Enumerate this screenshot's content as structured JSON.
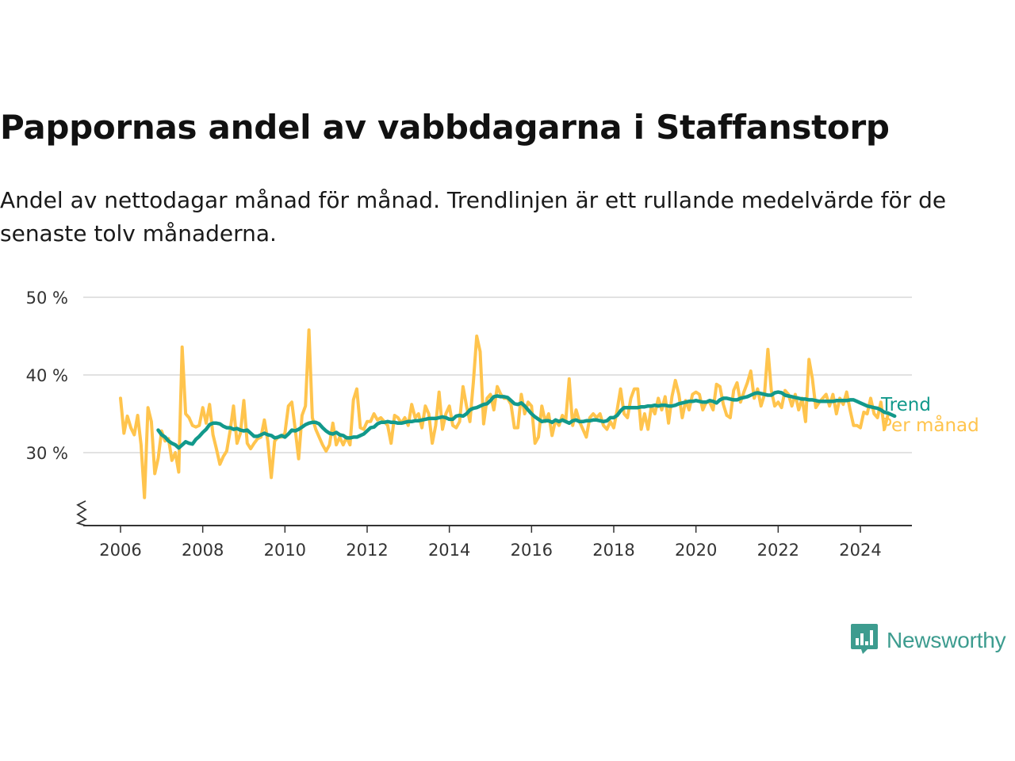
{
  "title": "Pappornas andel av vabbdagarna i Staffanstorp",
  "subtitle": "Andel av nettodagar månad för månad. Trendlinjen är ett rullande medelvärde för de senaste tolv månaderna.",
  "brand": {
    "name": "Newsworthy",
    "color": "#3d9c8f",
    "icon": "newsworthy-chart-bubble-icon"
  },
  "colors": {
    "monthly": "#FFC44D",
    "trend": "#12998B",
    "grid": "#d9d9d9",
    "axis": "#333333"
  },
  "chart_data": {
    "type": "line",
    "x_unit": "year (decimal, monthly data)",
    "x_ticks": [
      2006,
      2008,
      2010,
      2012,
      2014,
      2016,
      2018,
      2020,
      2022,
      2024
    ],
    "x_tick_labels": [
      "2006",
      "2008",
      "2010",
      "2012",
      "2014",
      "2016",
      "2018",
      "2020",
      "2022",
      "2024"
    ],
    "y_ticks": [
      30,
      40,
      50
    ],
    "y_tick_labels": [
      "30 %",
      "40 %",
      "50 %"
    ],
    "ylim": [
      21,
      50
    ],
    "xlim": [
      2005.1,
      2025.3
    ],
    "grid": true,
    "axis_break": true,
    "legend_placement": "right end of lines",
    "series": [
      {
        "name": "Per månad",
        "color": "#FFC44D",
        "x_start": 2006.0,
        "x_step": 0.083333,
        "values": [
          37.0,
          32.5,
          34.7,
          33.2,
          32.3,
          34.8,
          31.0,
          24.2,
          35.8,
          34.0,
          27.3,
          29.3,
          32.8,
          31.5,
          31.8,
          29.0,
          30.0,
          27.5,
          43.6,
          35.0,
          34.5,
          33.5,
          33.3,
          33.5,
          35.8,
          33.8,
          36.2,
          32.3,
          30.5,
          28.5,
          29.5,
          30.2,
          32.8,
          36.0,
          31.2,
          32.5,
          36.7,
          31.2,
          30.5,
          31.2,
          31.8,
          32.0,
          34.2,
          31.5,
          26.8,
          31.5,
          32.0,
          32.0,
          32.5,
          36.0,
          36.5,
          33.0,
          29.2,
          34.8,
          36.0,
          45.8,
          34.5,
          33.0,
          32.0,
          31.0,
          30.2,
          31.0,
          33.8,
          31.0,
          32.0,
          31.0,
          32.0,
          31.0,
          36.8,
          38.2,
          33.2,
          33.0,
          34.0,
          34.0,
          35.0,
          34.2,
          34.5,
          34.0,
          33.5,
          31.2,
          34.8,
          34.5,
          33.8,
          34.5,
          33.5,
          36.2,
          34.5,
          35.0,
          33.2,
          36.0,
          35.0,
          31.2,
          33.5,
          37.8,
          33.0,
          35.0,
          36.0,
          33.5,
          33.2,
          34.0,
          38.5,
          36.0,
          34.0,
          39.0,
          45.0,
          43.0,
          33.7,
          37.0,
          37.5,
          35.5,
          38.5,
          37.5,
          37.0,
          37.0,
          36.2,
          33.2,
          33.2,
          37.5,
          35.0,
          36.5,
          36.0,
          31.2,
          32.0,
          36.0,
          34.0,
          35.0,
          32.2,
          34.2,
          33.5,
          34.8,
          34.2,
          39.5,
          33.5,
          35.5,
          34.0,
          33.0,
          32.0,
          34.5,
          35.0,
          34.5,
          35.0,
          33.5,
          33.0,
          34.0,
          33.2,
          35.5,
          38.2,
          35.0,
          34.5,
          37.0,
          38.2,
          38.2,
          33.0,
          35.0,
          33.0,
          36.0,
          35.0,
          37.0,
          35.5,
          37.2,
          33.8,
          37.2,
          39.3,
          37.5,
          34.5,
          36.7,
          35.5,
          37.5,
          37.8,
          37.5,
          35.5,
          36.5,
          36.5,
          35.5,
          38.8,
          38.5,
          36.2,
          34.8,
          34.5,
          38.0,
          39.0,
          36.5,
          37.8,
          39.0,
          40.5,
          37.0,
          38.2,
          36.0,
          37.5,
          43.3,
          38.0,
          36.0,
          36.5,
          35.8,
          38.0,
          37.5,
          36.0,
          37.5,
          35.5,
          37.0,
          34.0,
          42.0,
          39.5,
          35.8,
          36.5,
          37.0,
          37.5,
          36.0,
          37.5,
          35.0,
          37.0,
          36.2,
          37.8,
          35.5,
          33.5,
          33.5,
          33.2,
          35.2,
          35.0,
          37.0,
          35.0,
          34.5,
          36.5,
          33.0,
          34.8
        ]
      },
      {
        "name": "Trend",
        "color": "#12998B",
        "x_start": 2006.917,
        "x_step": 0.083333,
        "values": [
          32.9,
          32.3,
          32.0,
          31.5,
          31.2,
          31.0,
          30.6,
          31.0,
          31.4,
          31.2,
          31.1,
          31.7,
          32.1,
          32.6,
          33.0,
          33.6,
          33.8,
          33.8,
          33.7,
          33.4,
          33.2,
          33.2,
          33.0,
          33.1,
          32.9,
          32.8,
          32.9,
          32.5,
          32.1,
          32.1,
          32.3,
          32.5,
          32.3,
          32.2,
          31.9,
          32.0,
          32.2,
          32.0,
          32.4,
          32.9,
          32.8,
          33.0,
          33.3,
          33.6,
          33.8,
          33.9,
          33.9,
          33.7,
          33.2,
          32.8,
          32.5,
          32.4,
          32.6,
          32.3,
          32.2,
          31.9,
          31.9,
          32.0,
          32.0,
          32.2,
          32.4,
          32.8,
          33.2,
          33.3,
          33.7,
          33.9,
          33.9,
          34.0,
          33.9,
          33.9,
          33.8,
          33.8,
          33.9,
          34.0,
          34.0,
          34.1,
          34.1,
          34.2,
          34.3,
          34.4,
          34.4,
          34.4,
          34.5,
          34.6,
          34.5,
          34.3,
          34.3,
          34.7,
          34.8,
          34.7,
          35.0,
          35.5,
          35.7,
          35.8,
          36.0,
          36.2,
          36.3,
          36.7,
          37.2,
          37.3,
          37.2,
          37.2,
          37.1,
          36.7,
          36.3,
          36.2,
          36.4,
          36.0,
          35.5,
          35.0,
          34.6,
          34.3,
          34.0,
          34.1,
          34.1,
          33.9,
          34.2,
          34.0,
          34.2,
          34.0,
          33.8,
          34.1,
          34.2,
          34.0,
          34.0,
          34.1,
          34.1,
          34.2,
          34.2,
          34.1,
          34.0,
          34.1,
          34.5,
          34.5,
          34.8,
          35.4,
          35.8,
          35.8,
          35.8,
          35.8,
          35.8,
          35.9,
          35.9,
          36.0,
          36.0,
          36.1,
          36.0,
          36.1,
          36.1,
          36.0,
          36.0,
          36.1,
          36.3,
          36.4,
          36.5,
          36.6,
          36.6,
          36.7,
          36.6,
          36.5,
          36.5,
          36.7,
          36.6,
          36.4,
          36.8,
          37.0,
          37.0,
          36.9,
          36.8,
          36.8,
          37.0,
          37.1,
          37.2,
          37.4,
          37.6,
          37.7,
          37.6,
          37.5,
          37.4,
          37.4,
          37.7,
          37.8,
          37.7,
          37.4,
          37.3,
          37.2,
          37.1,
          37.0,
          36.9,
          36.9,
          36.8,
          36.8,
          36.7,
          36.6,
          36.6,
          36.6,
          36.6,
          36.6,
          36.7,
          36.7,
          36.7,
          36.7,
          36.8,
          36.8,
          36.6,
          36.4,
          36.2,
          36.0,
          35.9,
          35.8,
          35.7,
          35.5,
          35.2,
          35.1,
          34.9,
          34.7
        ]
      }
    ]
  }
}
